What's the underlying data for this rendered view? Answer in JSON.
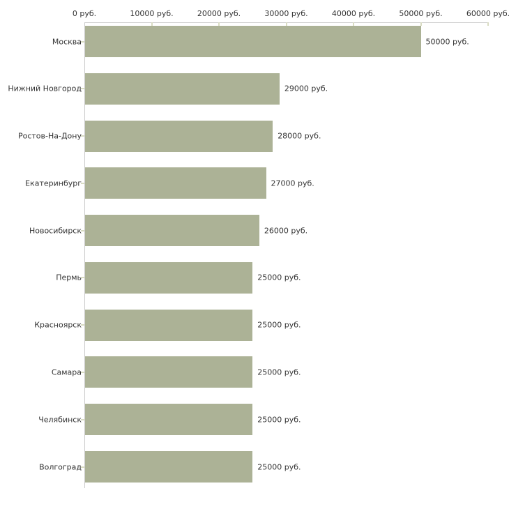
{
  "chart_data": {
    "type": "bar",
    "orientation": "horizontal",
    "title": "",
    "xlabel": "",
    "ylabel": "",
    "categories": [
      "Москва",
      "Нижний Новгород",
      "Ростов-На-Дону",
      "Екатеринбург",
      "Новосибирск",
      "Пермь",
      "Красноярск",
      "Самара",
      "Челябинск",
      "Волгоград"
    ],
    "values": [
      50000,
      29000,
      28000,
      27000,
      26000,
      25000,
      25000,
      25000,
      25000,
      25000
    ],
    "value_labels": [
      "50000 руб.",
      "29000 руб.",
      "28000 руб.",
      "27000 руб.",
      "26000 руб.",
      "25000 руб.",
      "25000 руб.",
      "25000 руб.",
      "25000 руб.",
      "25000 руб."
    ],
    "x_ticks": [
      0,
      10000,
      20000,
      30000,
      40000,
      50000,
      60000
    ],
    "x_tick_labels": [
      "0 руб.",
      "10000 руб.",
      "20000 руб.",
      "30000 руб.",
      "40000 руб.",
      "50000 руб.",
      "60000 руб."
    ],
    "xlim": [
      0,
      60000
    ],
    "grid": false,
    "legend": "none",
    "colors": {
      "bar": "#acb296",
      "axis": "#cccccc",
      "tick": "#d9dcc3",
      "text": "#333333",
      "background": "#ffffff"
    }
  }
}
